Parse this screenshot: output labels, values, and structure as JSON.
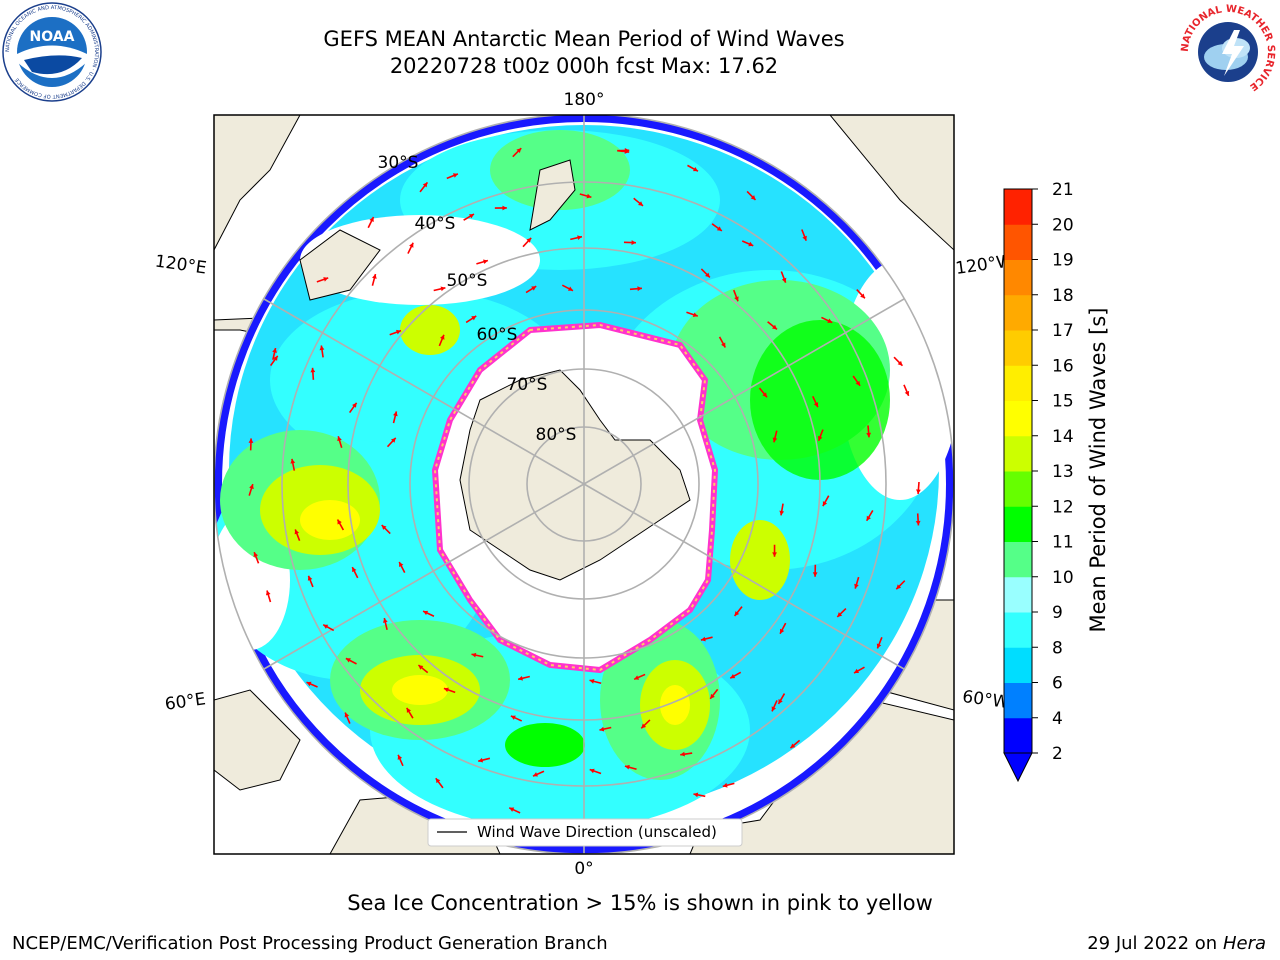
{
  "title": {
    "line1": "GEFS MEAN Antarctic Mean Period of Wind Waves",
    "line2": "20220728 t00z 000h fcst   Max: 17.62"
  },
  "map": {
    "projection": "south-polar-stereographic",
    "longitude_labels": {
      "top": "180°",
      "bottom": "0°",
      "upper_left": "120°E",
      "upper_right": "120°W",
      "lower_left": "60°E",
      "lower_right": "60°W"
    },
    "latitude_labels": [
      "30°S",
      "40°S",
      "50°S",
      "60°S",
      "70°S",
      "80°S"
    ],
    "legend": "Wind Wave Direction (unscaled)",
    "arrow_color": "#ff0000",
    "land_color": "#efebdc",
    "sea_ice_colors": [
      "#ff33cc",
      "#ffcc66"
    ]
  },
  "colorbar": {
    "label": "Mean Period of Wind Waves [s]",
    "ticks": [
      "2",
      "4",
      "6",
      "8",
      "9",
      "10",
      "11",
      "12",
      "13",
      "14",
      "15",
      "16",
      "17",
      "18",
      "19",
      "20",
      "21"
    ],
    "colors": [
      "#0000ff",
      "#0080ff",
      "#00ddff",
      "#33ffff",
      "#99ffff",
      "#55ff88",
      "#00ff00",
      "#66ff00",
      "#ccff00",
      "#ffff00",
      "#ffee00",
      "#ffcc00",
      "#ffaa00",
      "#ff8800",
      "#ff5500",
      "#ff2200"
    ],
    "extend": "min"
  },
  "caption": "Sea Ice Concentration > 15% is shown in pink to yellow",
  "footer": {
    "left": "NCEP/EMC/Verification Post Processing Product Generation Branch",
    "right_prefix": "29 Jul 2022 on",
    "right_italic": "Hera"
  },
  "logos": {
    "noaa_text": "NOAA",
    "noaa_ring_text": "NATIONAL OCEANIC AND ATMOSPHERIC ADMINISTRATION · U.S. DEPARTMENT OF COMMERCE",
    "nws_ring_text": "NATIONAL WEATHER SERVICE"
  }
}
